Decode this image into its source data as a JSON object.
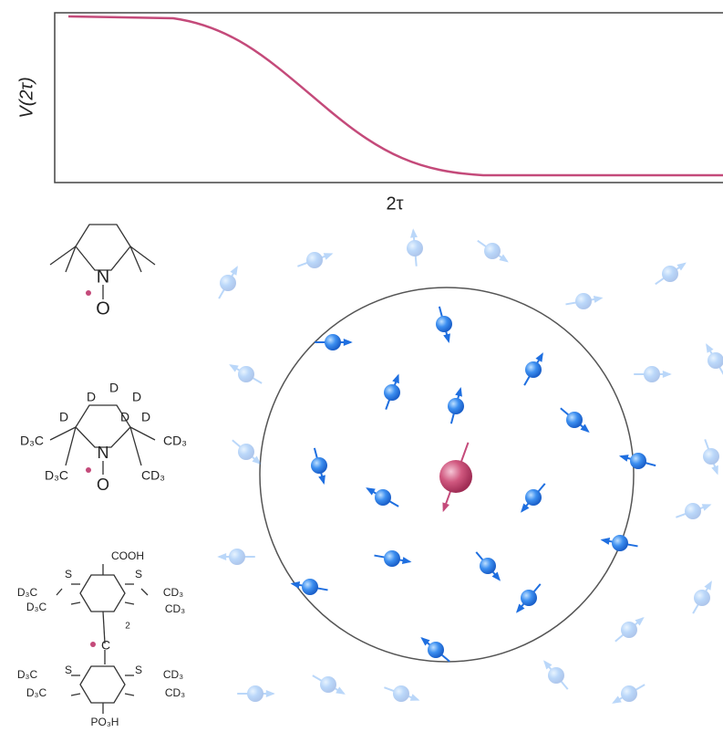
{
  "plot": {
    "y_label": "V(2τ)",
    "x_label": "2τ"
  },
  "molecules": [
    {
      "atoms": [
        "N",
        "O"
      ]
    },
    {
      "atoms": [
        "D",
        "D",
        "D",
        "D",
        "D",
        "D",
        "D₃C",
        "CD₃",
        "D₃C",
        "CD₃",
        "N",
        "O"
      ]
    },
    {
      "atoms": [
        "COOH",
        "S",
        "S",
        "D₃C",
        "D₃C",
        "CD₃",
        "CD₃",
        "2",
        "C",
        "S",
        "S",
        "D₃C",
        "D₃C",
        "CD₃",
        "CD₃",
        "PO₃H"
      ]
    }
  ]
}
